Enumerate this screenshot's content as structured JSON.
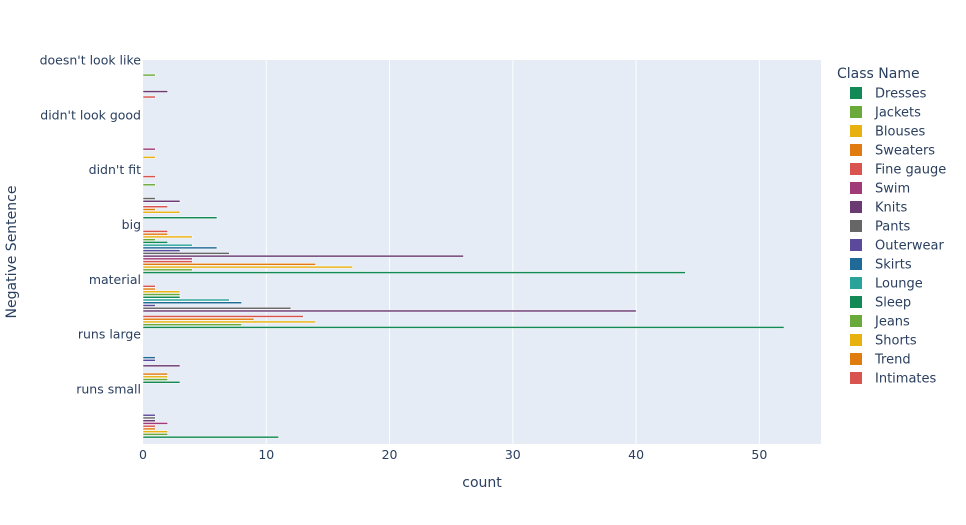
{
  "chart_data": {
    "type": "bar",
    "orientation": "horizontal",
    "xlabel": "count",
    "ylabel": "Negative Sentence",
    "xlim": [
      0,
      55
    ],
    "x_ticks": [
      0,
      10,
      20,
      30,
      40,
      50
    ],
    "grid": true,
    "legend_position": "right",
    "legend_title": "Class Name",
    "categories": [
      "doesn't look like",
      "didn't look good",
      "didn't fit",
      "big",
      "material",
      "runs large",
      "runs small"
    ],
    "series": [
      {
        "name": "Dresses",
        "color": "#138a55",
        "values": [
          0,
          0,
          6,
          44,
          52,
          3,
          11
        ]
      },
      {
        "name": "Jackets",
        "color": "#6aaa3a",
        "values": [
          0,
          0,
          0,
          4,
          8,
          2,
          2
        ]
      },
      {
        "name": "Blouses",
        "color": "#e8b10f",
        "values": [
          0,
          1,
          3,
          17,
          14,
          2,
          2
        ]
      },
      {
        "name": "Sweaters",
        "color": "#e07b10",
        "values": [
          0,
          0,
          1,
          14,
          9,
          2,
          1
        ]
      },
      {
        "name": "Fine gauge",
        "color": "#d9534f",
        "values": [
          1,
          0,
          2,
          4,
          13,
          0,
          1
        ]
      },
      {
        "name": "Swim",
        "color": "#a03a78",
        "values": [
          0,
          1,
          0,
          4,
          0,
          0,
          2
        ]
      },
      {
        "name": "Knits",
        "color": "#6b3a72",
        "values": [
          2,
          0,
          3,
          26,
          40,
          3,
          1
        ]
      },
      {
        "name": "Pants",
        "color": "#666666",
        "values": [
          0,
          0,
          1,
          7,
          12,
          0,
          1
        ]
      },
      {
        "name": "Outerwear",
        "color": "#5b4a9b",
        "values": [
          0,
          0,
          0,
          3,
          1,
          1,
          1
        ]
      },
      {
        "name": "Skirts",
        "color": "#1f6a96",
        "values": [
          0,
          0,
          0,
          6,
          8,
          1,
          0
        ]
      },
      {
        "name": "Lounge",
        "color": "#2aa39a",
        "values": [
          0,
          0,
          0,
          4,
          7,
          0,
          0
        ]
      },
      {
        "name": "Sleep",
        "color": "#138a55",
        "values": [
          0,
          0,
          0,
          2,
          3,
          0,
          0
        ]
      },
      {
        "name": "Jeans",
        "color": "#6aaa3a",
        "values": [
          1,
          0,
          1,
          1,
          3,
          0,
          0
        ]
      },
      {
        "name": "Shorts",
        "color": "#e8b10f",
        "values": [
          0,
          0,
          0,
          4,
          3,
          0,
          0
        ]
      },
      {
        "name": "Trend",
        "color": "#e07b10",
        "values": [
          0,
          0,
          0,
          2,
          1,
          0,
          0
        ]
      },
      {
        "name": "Intimates",
        "color": "#d9534f",
        "values": [
          0,
          0,
          1,
          2,
          1,
          0,
          0
        ]
      }
    ]
  }
}
